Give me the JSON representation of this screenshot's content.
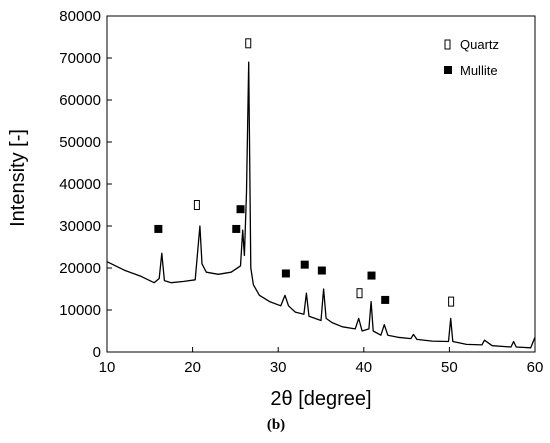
{
  "chart_data": {
    "type": "line",
    "title": "",
    "xlabel": "2θ [degree]",
    "ylabel": "Intensity [-]",
    "xlim": [
      10,
      60
    ],
    "ylim": [
      0,
      80000
    ],
    "x_ticks": [
      10,
      20,
      30,
      40,
      50,
      60
    ],
    "y_ticks": [
      0,
      10000,
      20000,
      30000,
      40000,
      50000,
      60000,
      70000,
      80000
    ],
    "grid": false,
    "legend_position": "top-right",
    "legend": [
      {
        "label": "Quartz",
        "marker": "open-square"
      },
      {
        "label": "Mullite",
        "marker": "filled-square"
      }
    ],
    "series": [
      {
        "x": [
          10,
          12,
          14,
          15.5,
          16.1,
          16.4,
          16.7,
          17.5,
          19,
          20.3,
          20.6,
          20.85,
          21.1,
          21.6,
          23,
          24.5,
          25.6,
          25.85,
          26.05,
          26.3,
          26.55,
          26.8,
          27.1,
          27.8,
          29,
          30.3,
          30.8,
          31.2,
          32,
          33,
          33.3,
          33.6,
          35,
          35.3,
          35.6,
          36.3,
          37.5,
          39,
          39.4,
          39.8,
          40.6,
          40.85,
          41.1,
          42,
          42.4,
          42.8,
          44,
          45.5,
          45.8,
          46.2,
          48,
          49.9,
          50.15,
          50.4,
          52,
          53.8,
          54.1,
          55,
          57.2,
          57.5,
          57.8,
          59.5,
          60
        ],
        "y": [
          21500,
          19500,
          18000,
          16500,
          17500,
          23500,
          17000,
          16500,
          16800,
          17200,
          24000,
          30000,
          21000,
          19000,
          18500,
          19000,
          20500,
          29000,
          23000,
          38000,
          69000,
          20000,
          16000,
          13500,
          12000,
          11000,
          13500,
          11000,
          9500,
          9000,
          14000,
          8500,
          7500,
          15000,
          8000,
          7000,
          6000,
          5500,
          8000,
          5000,
          5500,
          12000,
          5000,
          4000,
          6500,
          4000,
          3500,
          3200,
          4200,
          3000,
          2600,
          2500,
          8000,
          2500,
          1800,
          1700,
          2800,
          1500,
          1200,
          2500,
          1200,
          1000,
          3500
        ]
      }
    ],
    "markers": {
      "quartz": [
        {
          "x": 20.5,
          "y": 35000
        },
        {
          "x": 26.5,
          "y": 73500
        },
        {
          "x": 39.5,
          "y": 14000
        },
        {
          "x": 50.2,
          "y": 12000
        }
      ],
      "mullite": [
        {
          "x": 16,
          "y": 29300
        },
        {
          "x": 25.1,
          "y": 29300
        },
        {
          "x": 25.6,
          "y": 34000
        },
        {
          "x": 30.9,
          "y": 18700
        },
        {
          "x": 33.1,
          "y": 20800
        },
        {
          "x": 35.1,
          "y": 19400
        },
        {
          "x": 40.9,
          "y": 18200
        },
        {
          "x": 42.5,
          "y": 12400
        }
      ]
    }
  },
  "caption": "(b)",
  "colors": {
    "line": "#000000",
    "axis": "#000000",
    "background": "#ffffff"
  }
}
